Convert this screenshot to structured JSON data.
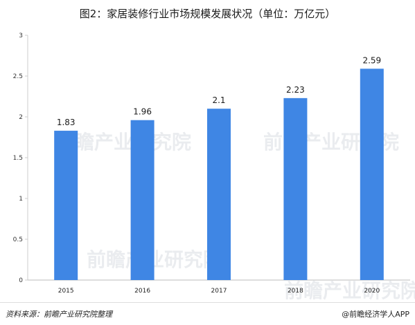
{
  "chart_data": {
    "type": "bar",
    "title": "图2：家居装修行业市场规模发展状况（单位：万亿元）",
    "categories": [
      "2015",
      "2016",
      "2017",
      "2018",
      "2020"
    ],
    "values": [
      1.83,
      1.96,
      2.1,
      2.23,
      2.59
    ],
    "value_labels": [
      "1.83",
      "1.96",
      "2.1",
      "2.23",
      "2.59"
    ],
    "ylim": [
      0,
      3
    ],
    "yticks": [
      "0",
      "0.5",
      "1",
      "1.5",
      "2",
      "2.5",
      "3"
    ],
    "ytick_values": [
      0,
      0.5,
      1,
      1.5,
      2,
      2.5,
      3
    ],
    "grid": false,
    "bar_color": "#3f86e4"
  },
  "footer": {
    "source": "资料来源：前瞻产业研究院整理",
    "credit": "@前瞻经济学人APP"
  },
  "watermark": "前瞻产业研究院"
}
